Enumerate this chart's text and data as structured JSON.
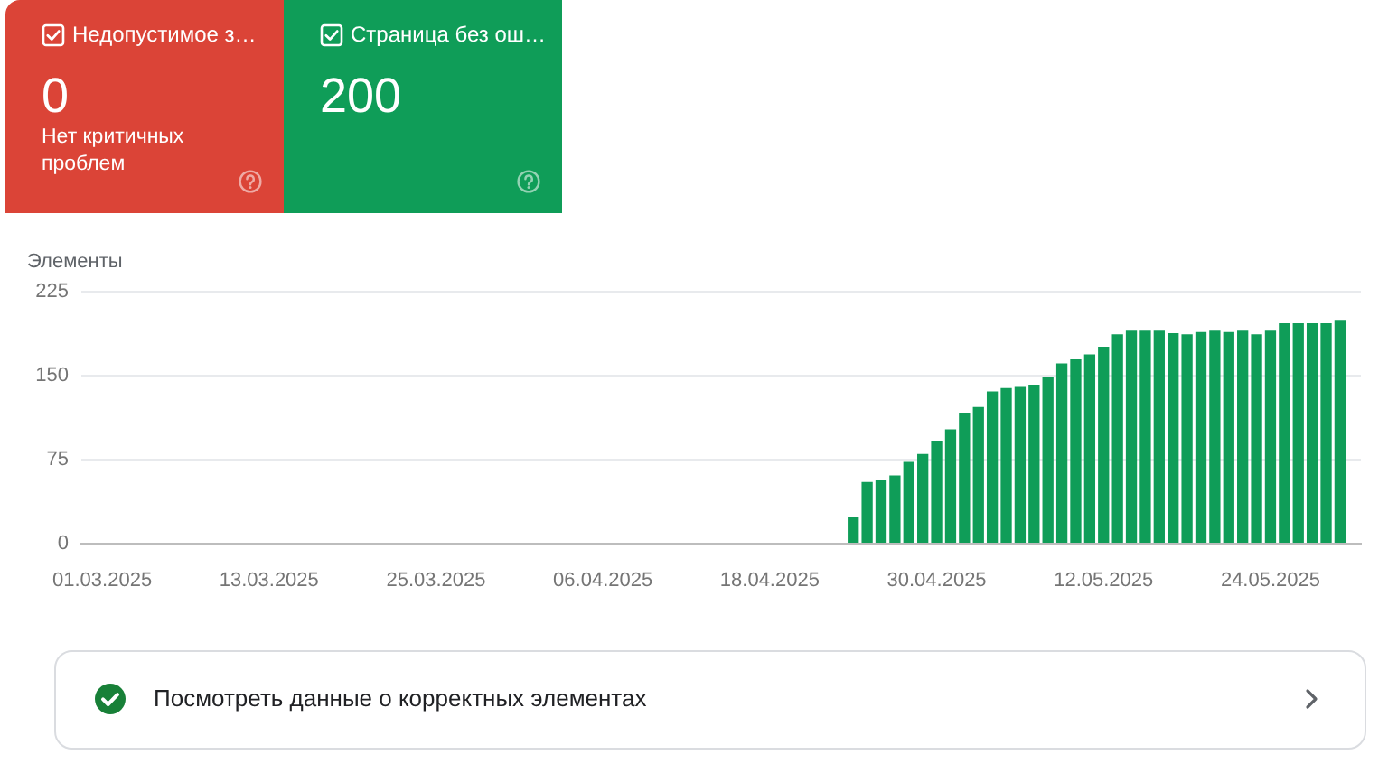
{
  "chart_data": [
    {
      "type": "other",
      "categories": [
        "Недопустимое з…",
        "Страница без ош…"
      ],
      "values": [
        0,
        200
      ],
      "data_labels": true,
      "colors": [
        "#db4437",
        "#0f9d58"
      ],
      "annotations": [
        "Нет критичных проблем"
      ]
    },
    {
      "type": "bar",
      "ylabel": "Элементы",
      "categories": [
        null,
        "01.03.2025",
        null,
        null,
        null,
        null,
        null,
        null,
        null,
        null,
        null,
        null,
        null,
        "13.03.2025",
        null,
        null,
        null,
        null,
        null,
        null,
        null,
        null,
        null,
        null,
        null,
        "25.03.2025",
        null,
        null,
        null,
        null,
        null,
        null,
        null,
        null,
        null,
        null,
        null,
        "06.04.2025",
        null,
        null,
        null,
        null,
        null,
        null,
        null,
        null,
        null,
        null,
        null,
        "18.04.2025",
        null,
        null,
        null,
        null,
        null,
        null,
        null,
        null,
        null,
        null,
        null,
        "30.04.2025",
        null,
        null,
        null,
        null,
        null,
        null,
        null,
        null,
        null,
        null,
        null,
        "12.05.2025",
        null,
        null,
        null,
        null,
        null,
        null,
        null,
        null,
        null,
        null,
        null,
        "24.05.2025",
        null,
        null,
        null,
        null,
        null,
        null
      ],
      "values": [
        null,
        null,
        null,
        null,
        null,
        null,
        null,
        null,
        null,
        null,
        null,
        null,
        null,
        null,
        null,
        null,
        null,
        null,
        null,
        null,
        null,
        null,
        null,
        null,
        null,
        null,
        null,
        null,
        null,
        null,
        null,
        null,
        null,
        null,
        null,
        null,
        null,
        null,
        null,
        null,
        null,
        null,
        null,
        null,
        null,
        null,
        null,
        null,
        null,
        null,
        null,
        null,
        null,
        null,
        null,
        24,
        55,
        57,
        61,
        73,
        80,
        92,
        102,
        117,
        122,
        136,
        139,
        140,
        142,
        149,
        161,
        165,
        169,
        176,
        187,
        191,
        191,
        191,
        188,
        187,
        189,
        191,
        189,
        191,
        187,
        191,
        197,
        197,
        197,
        197,
        200,
        null
      ],
      "color": "#0f9d58",
      "ylim": [
        0,
        225
      ],
      "yticks": [
        0,
        75,
        150,
        225
      ],
      "grid": "y",
      "annotations": [
        "Посмотреть данные о корректных элементах"
      ]
    }
  ]
}
